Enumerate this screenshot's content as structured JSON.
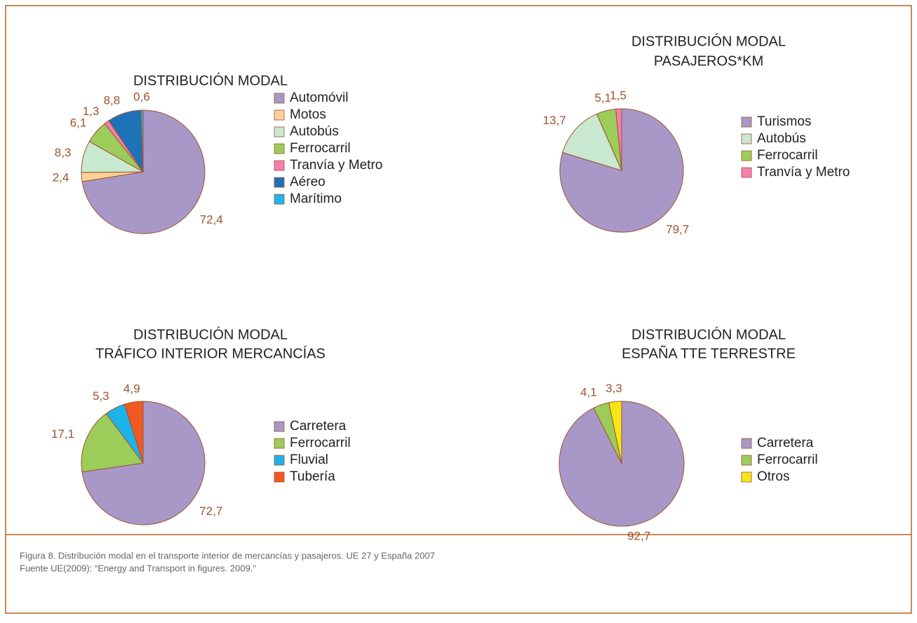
{
  "chart_data": [
    {
      "type": "pie",
      "title": [
        "DISTRIBUCIÓN MODAL"
      ],
      "categories": [
        "Automóvil",
        "Motos",
        "Autobús",
        "Ferrocarril",
        "Tranvía y Metro",
        "Aéreo",
        "Marítimo"
      ],
      "values": [
        72.4,
        2.4,
        8.3,
        6.1,
        1.3,
        8.8,
        0.6
      ],
      "value_labels": [
        "72,4",
        "2,4",
        "8,3",
        "6,1",
        "1,3",
        "8,8",
        "0,6"
      ],
      "colors": [
        "#a898c8",
        "#fdd09a",
        "#c9e8d0",
        "#9ccc5a",
        "#f47fae",
        "#1e73b8",
        "#1fb6e8"
      ]
    },
    {
      "type": "pie",
      "title": [
        "DISTRIBUCIÓN MODAL",
        "PASAJEROS*KM"
      ],
      "categories": [
        "Turismos",
        "Autobús",
        "Ferrocarril",
        "Tranvía y Metro"
      ],
      "values": [
        79.7,
        13.7,
        5.1,
        1.5
      ],
      "value_labels": [
        "79,7",
        "13,7",
        "5,1",
        "1,5"
      ],
      "colors": [
        "#a898c8",
        "#c9e8d0",
        "#9ccc5a",
        "#f47fae"
      ]
    },
    {
      "type": "pie",
      "title": [
        "DISTRIBUCIÓN MODAL",
        "TRÁFICO INTERIOR MERCANCÍAS"
      ],
      "categories": [
        "Carretera",
        "Ferrocarril",
        "Fluvial",
        "Tubería"
      ],
      "values": [
        72.7,
        17.1,
        5.3,
        4.9
      ],
      "value_labels": [
        "72,7",
        "17,1",
        "5,3",
        "4,9"
      ],
      "colors": [
        "#a898c8",
        "#9ccc5a",
        "#1cb4e8",
        "#f05a22"
      ]
    },
    {
      "type": "pie",
      "title": [
        "DISTRIBUCIÓN MODAL",
        "ESPAÑA TTE TERRESTRE"
      ],
      "categories": [
        "Carretera",
        "Ferrocarril",
        "Otros"
      ],
      "values": [
        92.7,
        4.1,
        3.3
      ],
      "value_labels": [
        "92,7",
        "4,1",
        "3,3"
      ],
      "colors": [
        "#a898c8",
        "#9ccc5a",
        "#f6e619"
      ]
    }
  ],
  "caption": [
    "Figura 8. Distribución modal en el transporte interior de mercancías y pasajeros. UE 27 y España 2007",
    "Fuente UE(2009): “Energy and Transport in figures. 2009.”"
  ]
}
